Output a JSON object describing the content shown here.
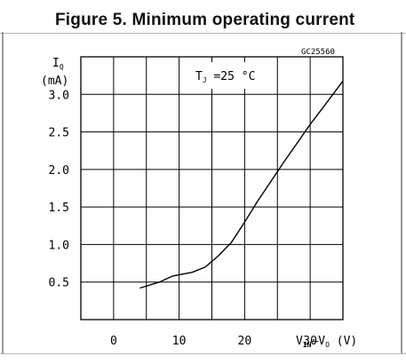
{
  "figure_title": "Figure 5. Minimum operating current",
  "chart_data": {
    "type": "line",
    "code": "GC25560",
    "condition": {
      "symbol": "T",
      "sub": "J",
      "text": " =25 °C"
    },
    "y_axis": {
      "symbol": "I",
      "sub": "Q",
      "unit": "(mA)",
      "ylim": [
        0,
        3.5
      ],
      "ticks": [
        "0.5",
        "1.0",
        "1.5",
        "2.0",
        "2.5",
        "3.0"
      ]
    },
    "x_axis": {
      "xlim": [
        -5,
        35
      ],
      "ticks": [
        "0",
        "10",
        "20",
        "30"
      ],
      "label_a": "V",
      "label_a_sub": "IN",
      "label_dash": "–",
      "label_b": "V",
      "label_b_sub": "O",
      "label_unit": " (V)"
    },
    "grid": true,
    "series": [
      {
        "x": [
          4,
          7,
          9,
          12,
          14,
          16,
          18,
          20,
          22,
          24,
          26,
          28,
          30,
          32,
          34,
          35
        ],
        "y": [
          0.42,
          0.5,
          0.58,
          0.63,
          0.7,
          0.85,
          1.03,
          1.3,
          1.58,
          1.84,
          2.1,
          2.35,
          2.6,
          2.83,
          3.06,
          3.18
        ]
      }
    ]
  }
}
